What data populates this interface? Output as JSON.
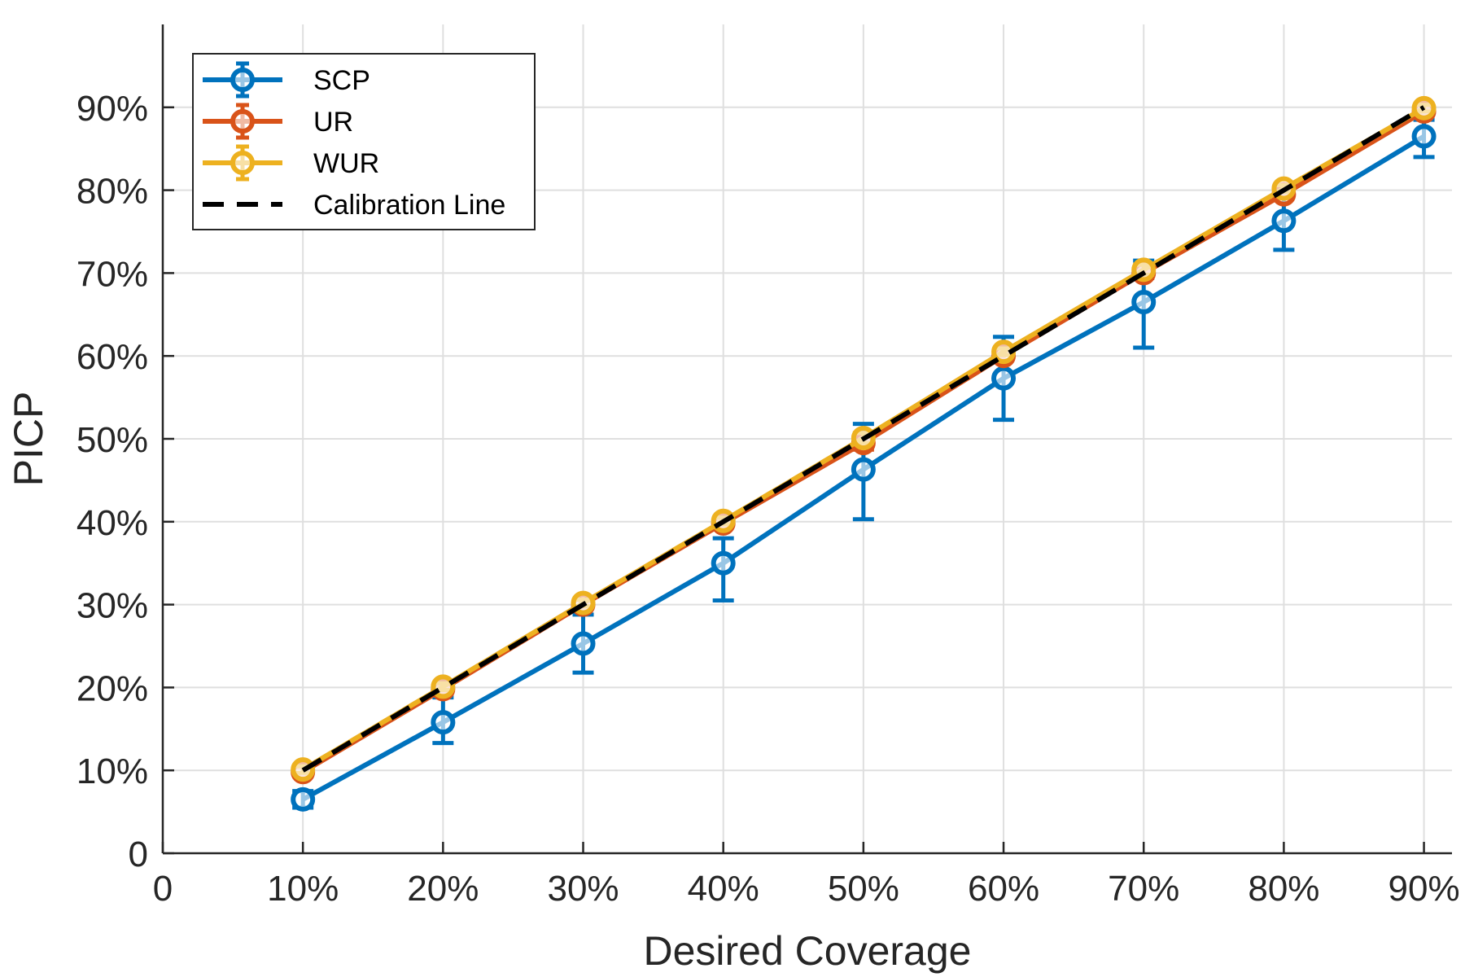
{
  "chart_data": {
    "type": "line",
    "title": "",
    "xlabel": "Desired Coverage",
    "ylabel": "PICP",
    "xlim": [
      0,
      0.92
    ],
    "ylim": [
      0,
      1.0
    ],
    "x_ticks": [
      {
        "value": 0,
        "label": "0"
      },
      {
        "value": 0.1,
        "label": "10%"
      },
      {
        "value": 0.2,
        "label": "20%"
      },
      {
        "value": 0.3,
        "label": "30%"
      },
      {
        "value": 0.4,
        "label": "40%"
      },
      {
        "value": 0.5,
        "label": "50%"
      },
      {
        "value": 0.6,
        "label": "60%"
      },
      {
        "value": 0.7,
        "label": "70%"
      },
      {
        "value": 0.8,
        "label": "80%"
      },
      {
        "value": 0.9,
        "label": "90%"
      }
    ],
    "y_ticks": [
      {
        "value": 0,
        "label": "0"
      },
      {
        "value": 0.1,
        "label": "10%"
      },
      {
        "value": 0.2,
        "label": "20%"
      },
      {
        "value": 0.3,
        "label": "30%"
      },
      {
        "value": 0.4,
        "label": "40%"
      },
      {
        "value": 0.5,
        "label": "50%"
      },
      {
        "value": 0.6,
        "label": "60%"
      },
      {
        "value": 0.7,
        "label": "70%"
      },
      {
        "value": 0.8,
        "label": "80%"
      },
      {
        "value": 0.9,
        "label": "90%"
      }
    ],
    "grid": true,
    "legend_position": "top-left",
    "x": [
      0.1,
      0.2,
      0.3,
      0.4,
      0.5,
      0.6,
      0.7,
      0.8,
      0.9
    ],
    "series": [
      {
        "name": "SCP",
        "color": "#0072BD",
        "values": [
          0.065,
          0.158,
          0.253,
          0.35,
          0.463,
          0.573,
          0.665,
          0.763,
          0.865
        ],
        "err_low": [
          0.01,
          0.025,
          0.035,
          0.045,
          0.06,
          0.05,
          0.055,
          0.035,
          0.025
        ],
        "err_high": [
          0.01,
          0.03,
          0.035,
          0.03,
          0.055,
          0.05,
          0.05,
          0.03,
          0.02
        ]
      },
      {
        "name": "UR",
        "color": "#D95319",
        "values": [
          0.098,
          0.198,
          0.3,
          0.398,
          0.495,
          0.6,
          0.7,
          0.795,
          0.895
        ],
        "err_low": [
          0.005,
          0.005,
          0.005,
          0.005,
          0.008,
          0.005,
          0.006,
          0.005,
          0.005
        ],
        "err_high": [
          0.005,
          0.005,
          0.005,
          0.005,
          0.008,
          0.005,
          0.006,
          0.005,
          0.005
        ]
      },
      {
        "name": "WUR",
        "color": "#EDB120",
        "values": [
          0.101,
          0.201,
          0.302,
          0.401,
          0.501,
          0.605,
          0.704,
          0.802,
          0.899
        ],
        "err_low": [
          0.004,
          0.004,
          0.004,
          0.004,
          0.006,
          0.004,
          0.006,
          0.004,
          0.004
        ],
        "err_high": [
          0.004,
          0.004,
          0.004,
          0.004,
          0.006,
          0.004,
          0.006,
          0.004,
          0.004
        ]
      }
    ],
    "reference_line": {
      "name": "Calibration Line",
      "color": "#000000",
      "x": [
        0.1,
        0.9
      ],
      "y": [
        0.1,
        0.9
      ]
    }
  }
}
